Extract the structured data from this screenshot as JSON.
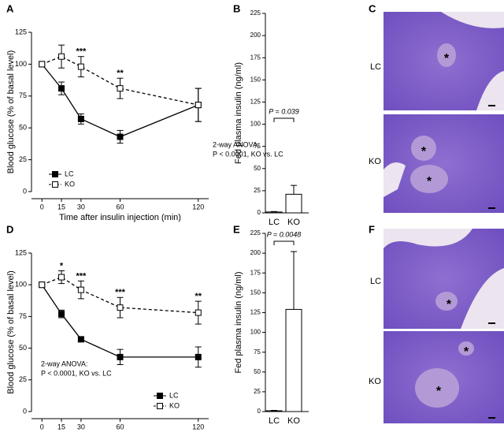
{
  "chart_data": [
    {
      "panel": "A",
      "type": "line",
      "x": [
        0,
        15,
        30,
        60,
        120
      ],
      "xlim": [
        -8,
        128
      ],
      "xticks": [
        0,
        15,
        30,
        60,
        120
      ],
      "ylim": [
        0,
        125
      ],
      "yticks": [
        0,
        25,
        50,
        75,
        100,
        125
      ],
      "xlabel": "Time after insulin injection (min)",
      "ylabel": "Blood glucose (% of basal level)",
      "series": [
        {
          "name": "LC",
          "color": "#000000",
          "dash": false,
          "marker": "filled",
          "values": [
            100,
            81,
            57,
            43,
            68
          ],
          "errors": [
            0,
            5,
            4,
            5,
            13
          ]
        },
        {
          "name": "KO",
          "color": "#000000",
          "dash": true,
          "marker": "open",
          "values": [
            100,
            106,
            98,
            81,
            68
          ],
          "errors": [
            0,
            9,
            8,
            8,
            13
          ]
        }
      ],
      "annotations": [
        {
          "x": 30,
          "text": "***"
        },
        {
          "x": 60,
          "text": "**"
        }
      ],
      "stats": [
        "2-way ANOVA:",
        "P < 0.0001, KO vs. LC"
      ],
      "legend": "lower left"
    },
    {
      "panel": "B",
      "type": "bar",
      "categories": [
        "LC",
        "KO"
      ],
      "values": [
        1,
        21
      ],
      "errors": [
        0.5,
        10
      ],
      "color": "#ffffff",
      "ylim": [
        0,
        225
      ],
      "yticks": [
        0,
        25,
        50,
        75,
        100,
        125,
        150,
        175,
        200,
        225
      ],
      "ylabel": "Fed plasma insulin (ng/ml)",
      "comparison": "P = 0.039"
    },
    {
      "panel": "D",
      "type": "line",
      "x": [
        0,
        15,
        30,
        60,
        120
      ],
      "xlim": [
        -8,
        128
      ],
      "xticks": [
        0,
        15,
        30,
        60,
        120
      ],
      "ylim": [
        0,
        125
      ],
      "yticks": [
        0,
        25,
        50,
        75,
        100,
        125
      ],
      "xlabel": "Time after insulin injection (min)",
      "ylabel": "Blood glucose (% of basal level)",
      "series": [
        {
          "name": "LC",
          "color": "#000000",
          "dash": false,
          "marker": "filled",
          "values": [
            100,
            77,
            57,
            43,
            43
          ],
          "errors": [
            0,
            3,
            2,
            6,
            8
          ]
        },
        {
          "name": "KO",
          "color": "#000000",
          "dash": true,
          "marker": "open",
          "values": [
            100,
            106,
            96,
            82,
            78
          ],
          "errors": [
            0,
            5,
            7,
            8,
            9
          ]
        }
      ],
      "annotations": [
        {
          "x": 15,
          "text": "*"
        },
        {
          "x": 30,
          "text": "***"
        },
        {
          "x": 60,
          "text": "***"
        },
        {
          "x": 120,
          "text": "**"
        }
      ],
      "stats": [
        "2-way ANOVA:",
        "P < 0.0001, KO vs. LC"
      ],
      "legend": "lower right"
    },
    {
      "panel": "E",
      "type": "bar",
      "categories": [
        "LC",
        "KO"
      ],
      "values": [
        1,
        129
      ],
      "errors": [
        0.5,
        73
      ],
      "color": "#ffffff",
      "ylim": [
        0,
        225
      ],
      "yticks": [
        0,
        25,
        50,
        75,
        100,
        125,
        150,
        175,
        200,
        225
      ],
      "ylabel": "Fed plasma insulin (ng/ml)",
      "comparison": "P = 0.0048"
    }
  ],
  "image_panels": [
    {
      "panel": "C",
      "rows": [
        {
          "label": "LC",
          "markers": [
            "*"
          ]
        },
        {
          "label": "KO",
          "markers": [
            "*",
            "*"
          ]
        }
      ]
    },
    {
      "panel": "F",
      "rows": [
        {
          "label": "LC",
          "markers": [
            "*"
          ]
        },
        {
          "label": "KO",
          "markers": [
            "*",
            "*"
          ]
        }
      ]
    }
  ]
}
